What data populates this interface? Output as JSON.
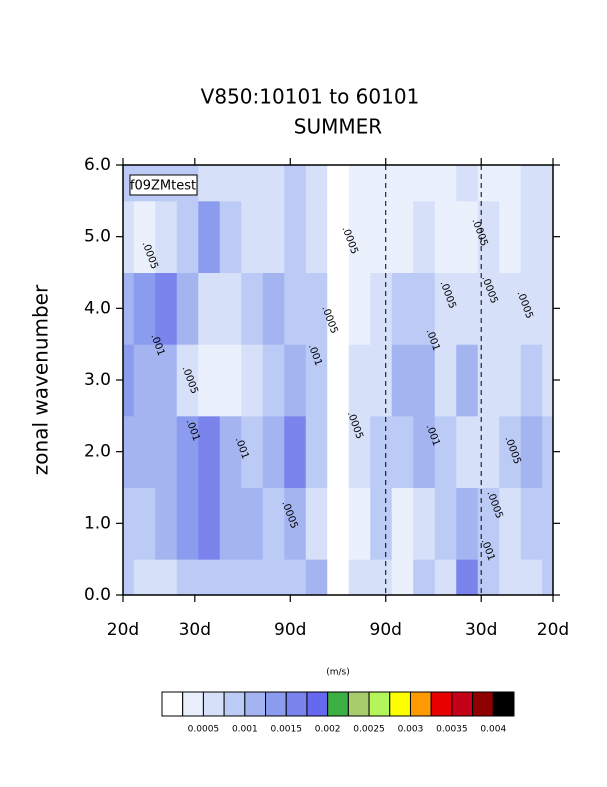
{
  "chart_data": {
    "type": "contour",
    "title": "V850:10101 to 60101",
    "subtitle": "SUMMER",
    "y_label": "zonal wavenumber",
    "legend_label": "f09ZMtest",
    "x": [
      -0.05,
      -0.045,
      -0.04,
      -0.035,
      -0.03,
      -0.025,
      -0.02,
      -0.015,
      -0.01,
      -0.005,
      0,
      0.005,
      0.01,
      0.015,
      0.02,
      0.025,
      0.03,
      0.035,
      0.04,
      0.045,
      0.05
    ],
    "y": [
      0,
      1,
      2,
      3,
      4,
      5,
      6
    ],
    "z": [
      [
        0.0008,
        0.0005,
        0.0005,
        0.0009,
        0.0009,
        0.0008,
        0.0008,
        0.0009,
        0.0008,
        0.001,
        0.0002,
        0.0005,
        0.0006,
        0.0004,
        0.0008,
        0.0006,
        0.0016,
        0.0009,
        0.0006,
        0.0007,
        0.0008
      ],
      [
        0.0009,
        0.0009,
        0.0011,
        0.0014,
        0.0016,
        0.0012,
        0.001,
        0.0008,
        0.0011,
        0.0006,
        0.0002,
        0.0004,
        0.0008,
        0.0003,
        0.0005,
        0.0008,
        0.0012,
        0.0008,
        0.0007,
        0.0009,
        0.0009
      ],
      [
        0.001,
        0.0011,
        0.0012,
        0.0013,
        0.0016,
        0.0012,
        0.0008,
        0.0011,
        0.0016,
        0.0008,
        0.0002,
        0.0005,
        0.0009,
        0.0009,
        0.0012,
        0.0009,
        0.0007,
        0.0006,
        0.0008,
        0.0012,
        0.0008
      ],
      [
        0.0013,
        0.0012,
        0.001,
        0.0006,
        0.0004,
        0.0003,
        0.0005,
        0.0009,
        0.001,
        0.0009,
        0.0002,
        0.0006,
        0.0007,
        0.0011,
        0.0012,
        0.0007,
        0.0011,
        0.0007,
        0.0007,
        0.0008,
        0.0007
      ],
      [
        0.001,
        0.0013,
        0.0017,
        0.0011,
        0.0007,
        0.0006,
        0.0008,
        0.0012,
        0.0008,
        0.0008,
        0.0002,
        0.0004,
        0.0006,
        0.0008,
        0.0009,
        0.0006,
        0.0007,
        0.0006,
        0.0005,
        0.0007,
        0.0007
      ],
      [
        0.0005,
        0.0004,
        0.0007,
        0.0008,
        0.0013,
        0.0008,
        0.0007,
        0.0007,
        0.0008,
        0.0007,
        0.0002,
        0.0003,
        0.0004,
        0.0004,
        0.0005,
        0.0003,
        0.0004,
        0.0005,
        0.0003,
        0.0005,
        0.0005
      ],
      [
        0.0008,
        0.0009,
        0.0009,
        0.0008,
        0.0007,
        0.0006,
        0.0007,
        0.0007,
        0.0008,
        0.0007,
        0.0002,
        0.0003,
        0.0004,
        0.0003,
        0.0004,
        0.0004,
        0.0005,
        0.0004,
        0.0004,
        0.0005,
        0.0005
      ]
    ],
    "xlim": [
      -0.05,
      0.05
    ],
    "ylim": [
      0,
      6
    ],
    "xticks": [
      {
        "value": -0.05,
        "label": "20d"
      },
      {
        "value": -0.0333,
        "label": "30d"
      },
      {
        "value": -0.0111,
        "label": "90d"
      },
      {
        "value": 0.0111,
        "label": "90d"
      },
      {
        "value": 0.0333,
        "label": "30d"
      },
      {
        "value": 0.05,
        "label": "20d"
      }
    ],
    "yticks": [
      {
        "value": 0,
        "label": "0.0"
      },
      {
        "value": 1,
        "label": "1.0"
      },
      {
        "value": 2,
        "label": "2.0"
      },
      {
        "value": 3,
        "label": "3.0"
      },
      {
        "value": 4,
        "label": "4.0"
      },
      {
        "value": 5,
        "label": "5.0"
      },
      {
        "value": 6,
        "label": "6.0"
      }
    ],
    "levels": [
      0.00025,
      0.0005,
      0.00075,
      0.001,
      0.00125,
      0.0015,
      0.00175,
      0.002,
      0.00225,
      0.0025,
      0.00275,
      0.003,
      0.00325,
      0.0035,
      0.00375,
      0.004
    ],
    "colors": [
      "#ffffff",
      "#eaf1fd",
      "#d6e0f9",
      "#bccbf5",
      "#a3b4f1",
      "#8b9cee",
      "#7a84ec",
      "#6668f0",
      "#3cb043",
      "#a8cb6c",
      "#b4f55c",
      "#ffff00",
      "#ff9900",
      "#e60000",
      "#c30018",
      "#8f0000",
      "#000000"
    ],
    "colorbar": {
      "units": "(m/s)",
      "ticks": [
        0.0005,
        0.001,
        0.0015,
        0.002,
        0.0025,
        0.003,
        0.0035,
        0.004
      ]
    },
    "contour_labels": [
      {
        "value": 0.0005,
        "label": ".0005",
        "x": -0.0437,
        "y": 4.74
      },
      {
        "value": 0.001,
        "label": ".001",
        "x": -0.0419,
        "y": 3.49
      },
      {
        "value": 0.0005,
        "label": ".0005",
        "x": -0.0344,
        "y": 3.0
      },
      {
        "value": 0.001,
        "label": ".001",
        "x": -0.0337,
        "y": 2.3
      },
      {
        "value": 0.001,
        "label": ".001",
        "x": -0.0223,
        "y": 2.05
      },
      {
        "value": 0.0005,
        "label": ".0005",
        "x": -0.0112,
        "y": 1.12
      },
      {
        "value": 0.0005,
        "label": ".0005",
        "x": -0.0019,
        "y": 3.84
      },
      {
        "value": 0.001,
        "label": ".001",
        "x": -0.0053,
        "y": 3.35
      },
      {
        "value": 0.0005,
        "label": ".0005",
        "x": 0.0028,
        "y": 4.95
      },
      {
        "value": 0.0005,
        "label": ".0005",
        "x": 0.004,
        "y": 2.37
      },
      {
        "value": 0.001,
        "label": ".001",
        "x": 0.0221,
        "y": 3.56
      },
      {
        "value": 0.001,
        "label": ".001",
        "x": 0.0221,
        "y": 2.23
      },
      {
        "value": 0.0005,
        "label": ".0005",
        "x": 0.0256,
        "y": 4.19
      },
      {
        "value": 0.0005,
        "label": ".0005",
        "x": 0.033,
        "y": 5.06
      },
      {
        "value": 0.0005,
        "label": ".0005",
        "x": 0.0353,
        "y": 4.26
      },
      {
        "value": 0.0005,
        "label": ".0005",
        "x": 0.0365,
        "y": 1.26
      },
      {
        "value": 0.001,
        "label": ".001",
        "x": 0.0349,
        "y": 0.63
      },
      {
        "value": 0.0005,
        "label": ".0005",
        "x": 0.0435,
        "y": 4.05
      },
      {
        "value": 0.0005,
        "label": ".0005",
        "x": 0.0407,
        "y": 2.02
      }
    ]
  }
}
